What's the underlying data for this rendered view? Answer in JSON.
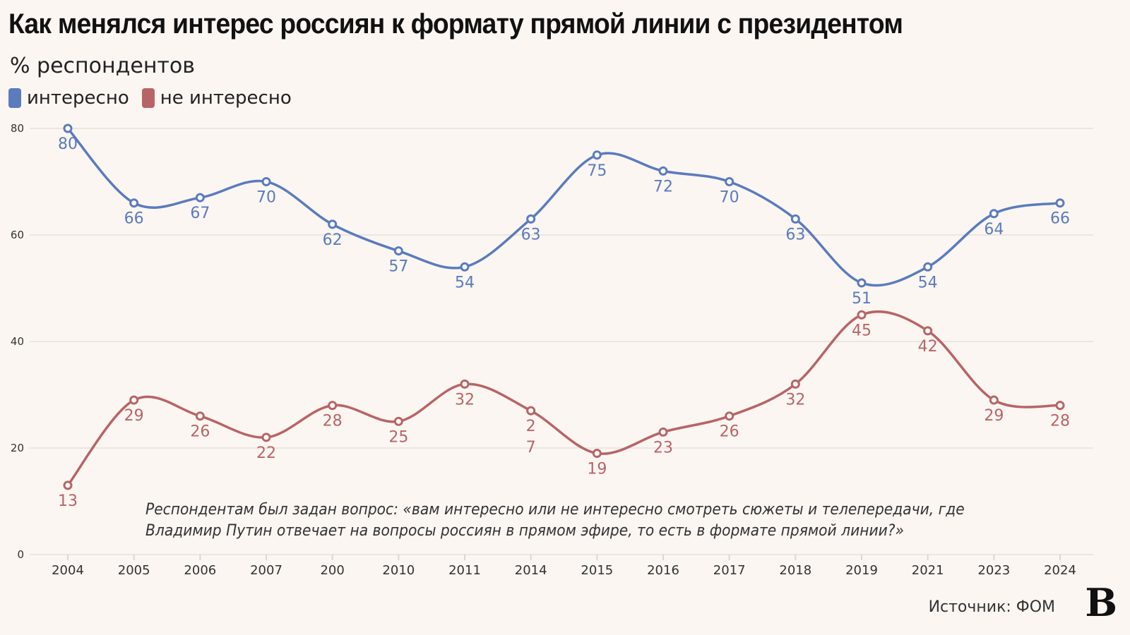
{
  "title": "Как менялся интерес россиян к формату прямой линии с президентом",
  "subtitle": "% респондентов",
  "note_lines": [
    "Респондентам был задан вопрос: «вам интересно или не интересно смотреть сюжеты и телепередачи, где",
    "Владимир Путин отвечает на вопросы россиян в прямом эфире, то есть в формате прямой линии?»"
  ],
  "source": "Источник: ФОМ",
  "logo": "В",
  "chart_data": {
    "type": "line",
    "categories": [
      "2004",
      "2005",
      "2006",
      "2007",
      "200",
      "2010",
      "2011",
      "2014",
      "2015",
      "2016",
      "2017",
      "2018",
      "2019",
      "2021",
      "2023",
      "2024"
    ],
    "ylim": [
      0,
      80
    ],
    "yticks": [
      0,
      20,
      40,
      60,
      80
    ],
    "grid": true,
    "legend_placement": "top-left",
    "series": [
      {
        "name": "интересно",
        "color": "#5b7bbd",
        "values": [
          80,
          66,
          67,
          70,
          62,
          57,
          54,
          63,
          75,
          72,
          70,
          63,
          51,
          54,
          64,
          66
        ],
        "labels": [
          "80",
          "66",
          "67",
          "70",
          "62",
          "57",
          "54",
          "63",
          "75",
          "72",
          "70",
          "63",
          "51",
          "54",
          "64",
          "66"
        ]
      },
      {
        "name": "не интересно",
        "color": "#b86467",
        "values": [
          13,
          29,
          26,
          22,
          28,
          25,
          32,
          27,
          19,
          23,
          26,
          32,
          45,
          42,
          29,
          28
        ],
        "labels": [
          "13",
          "29",
          "26",
          "22",
          "28",
          "25",
          "32",
          "27",
          "19",
          "23",
          "26",
          "32",
          "45",
          "42",
          "29",
          "28"
        ]
      }
    ]
  }
}
